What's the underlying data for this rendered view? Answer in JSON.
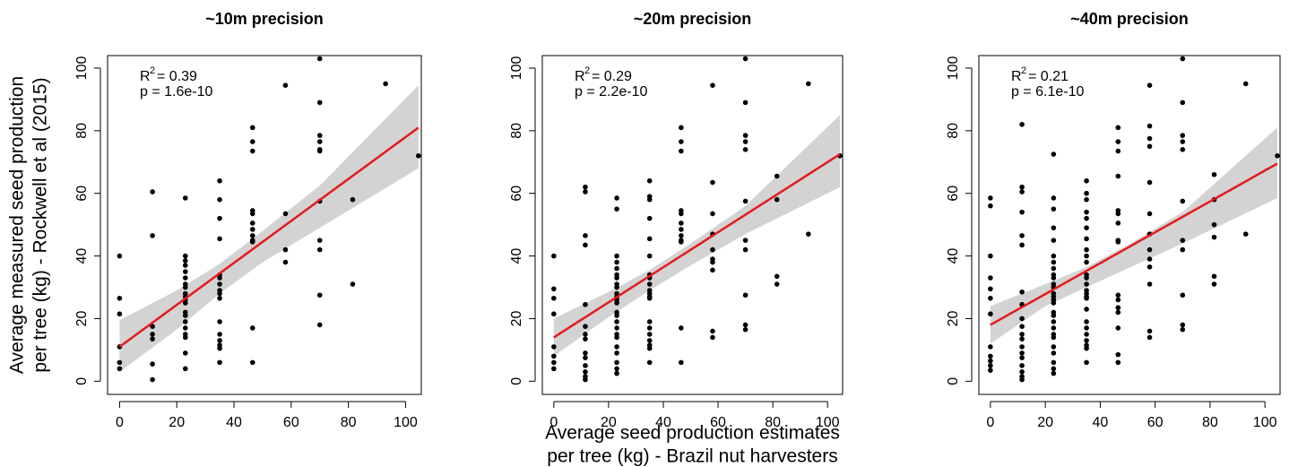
{
  "chart_data": [
    {
      "type": "scatter",
      "title": "~10m precision",
      "ylabel": [
        "Average measured seed production",
        "per tree (kg) - Rockwell et al (2015)"
      ],
      "r2_symbol": "R",
      "r2_exponent": "2",
      "r2_value": "= 0.39",
      "p_text": "p = 1.6e-10",
      "xlim": [
        -4.2,
        105.5
      ],
      "ylim": [
        -4.2,
        104
      ],
      "xticks": [
        0,
        20,
        40,
        60,
        80,
        100
      ],
      "yticks": [
        0,
        20,
        40,
        60,
        80,
        100
      ],
      "color": "#000000",
      "fit_color": "#e41a1c",
      "band_color": "#d3d3d3",
      "x": [
        0,
        0,
        0,
        0,
        0,
        0,
        11.5,
        11.5,
        11.5,
        11.5,
        11.5,
        11.5,
        11.5,
        23,
        23,
        23,
        23,
        23,
        23,
        23,
        23,
        23,
        23,
        23,
        23,
        23,
        23,
        23,
        23,
        23,
        23,
        23,
        23,
        35,
        35,
        35,
        35,
        35,
        35,
        35,
        35,
        35,
        35,
        35,
        35,
        35,
        35,
        35,
        35,
        46.5,
        46.5,
        46.5,
        46.5,
        46.5,
        46.5,
        46.5,
        46.5,
        46.5,
        46.5,
        46.5,
        46.5,
        58,
        58,
        58,
        58,
        70,
        70,
        70,
        70,
        70,
        70,
        70,
        70,
        70,
        70,
        70,
        81.5,
        81.5,
        93,
        104.5
      ],
      "y": [
        40,
        26.5,
        21.5,
        11,
        6,
        4,
        60.5,
        46.5,
        17.5,
        15,
        13.5,
        5.5,
        0.5,
        58.5,
        40,
        38.5,
        37,
        35,
        33,
        31,
        30,
        28,
        27,
        26,
        25,
        22,
        21,
        19,
        17,
        15,
        14,
        9,
        4,
        64,
        58,
        52,
        45.5,
        34,
        33,
        31,
        29,
        28,
        26.5,
        19,
        15,
        13,
        11.5,
        10.5,
        6,
        81,
        76.5,
        73.5,
        54.5,
        53.5,
        50.5,
        48.5,
        46.5,
        45,
        44.5,
        17,
        6,
        94.5,
        53.5,
        42,
        38,
        103,
        89,
        78.5,
        76.5,
        74,
        73.5,
        57.5,
        45,
        42,
        27.5,
        18,
        58,
        31,
        95,
        72
      ],
      "fit": {
        "x": [
          0,
          104.5
        ],
        "y": [
          11,
          81
        ]
      },
      "ci": {
        "x": [
          0,
          20,
          35,
          50,
          70,
          104.5
        ],
        "upper": [
          19.5,
          29,
          37.5,
          48,
          62.5,
          94.5
        ],
        "lower": [
          3,
          16.5,
          28,
          38,
          49,
          68
        ]
      }
    },
    {
      "type": "scatter",
      "title": "~20m precision",
      "xlabel": [
        "Average seed production estimates",
        "per tree (kg) - Brazil nut harvesters"
      ],
      "r2_symbol": "R",
      "r2_exponent": "2",
      "r2_value": "= 0.29",
      "p_text": "p = 2.2e-10",
      "xlim": [
        -4.2,
        105.5
      ],
      "ylim": [
        -4.2,
        104
      ],
      "xticks": [
        0,
        20,
        40,
        60,
        80,
        100
      ],
      "yticks": [
        0,
        20,
        40,
        60,
        80,
        100
      ],
      "color": "#000000",
      "fit_color": "#e41a1c",
      "band_color": "#d3d3d3",
      "x": [
        0,
        0,
        0,
        0,
        0,
        0,
        0,
        0,
        11.5,
        11.5,
        11.5,
        11.5,
        11.5,
        11.5,
        11.5,
        11.5,
        11.5,
        11.5,
        11.5,
        11.5,
        11.5,
        11.5,
        23,
        23,
        23,
        23,
        23,
        23,
        23,
        23,
        23,
        23,
        23,
        23,
        23,
        23,
        23,
        23,
        23,
        23,
        23,
        23,
        23,
        23,
        23,
        23,
        35,
        35,
        35,
        35,
        35,
        35,
        35,
        35,
        35,
        35,
        35,
        35,
        35,
        35,
        35,
        35,
        35,
        35,
        35,
        35,
        46.5,
        46.5,
        46.5,
        46.5,
        46.5,
        46.5,
        46.5,
        46.5,
        46.5,
        46.5,
        46.5,
        46.5,
        58,
        58,
        58,
        58,
        58,
        58,
        58,
        58,
        58,
        58,
        70,
        70,
        70,
        70,
        70,
        70,
        70,
        70,
        70,
        70,
        70,
        81.5,
        81.5,
        81.5,
        81.5,
        93,
        93,
        104.5
      ],
      "y": [
        40,
        29.5,
        26.5,
        21.5,
        11,
        8,
        6,
        4,
        62,
        60.5,
        46.5,
        43.5,
        24.5,
        17.5,
        15,
        13.5,
        9,
        7.5,
        5,
        3,
        1.5,
        0.5,
        58.5,
        55,
        40,
        38,
        36,
        34,
        33,
        31,
        30,
        28,
        27,
        26,
        25,
        22,
        21,
        19,
        17,
        15,
        14,
        11,
        9,
        6,
        4,
        2.5,
        64,
        59,
        58,
        52,
        45.5,
        40,
        34,
        33,
        31,
        29,
        28,
        27,
        26.5,
        19,
        17,
        15,
        13,
        11.5,
        10.5,
        6,
        81,
        76.5,
        73.5,
        54.5,
        53.5,
        50.5,
        48.5,
        46.5,
        45,
        44.5,
        17,
        6,
        94.5,
        63.5,
        53.5,
        47,
        42,
        39,
        38,
        35.5,
        16,
        14,
        103,
        89,
        78.5,
        76.5,
        74,
        57.5,
        45,
        42,
        27.5,
        18,
        16.5,
        65.5,
        58,
        33.5,
        31,
        95,
        47,
        72
      ],
      "fit": {
        "x": [
          0,
          104.5
        ],
        "y": [
          14,
          72.5
        ]
      },
      "ci": {
        "x": [
          0,
          20,
          35,
          50,
          70,
          104.5
        ],
        "upper": [
          20,
          28.5,
          35.5,
          44,
          56,
          85
        ],
        "lower": [
          8,
          20.5,
          29,
          37,
          47,
          62
        ]
      }
    },
    {
      "type": "scatter",
      "title": "~40m precision",
      "r2_symbol": "R",
      "r2_exponent": "2",
      "r2_value": "= 0.21",
      "p_text": "p = 6.1e-10",
      "xlim": [
        -4.2,
        105.5
      ],
      "ylim": [
        -4.2,
        104
      ],
      "xticks": [
        0,
        20,
        40,
        60,
        80,
        100
      ],
      "yticks": [
        0,
        20,
        40,
        60,
        80,
        100
      ],
      "color": "#000000",
      "fit_color": "#e41a1c",
      "band_color": "#d3d3d3",
      "x": [
        0,
        0,
        0,
        0,
        0,
        0,
        0,
        0,
        0,
        0,
        0,
        0,
        11.5,
        11.5,
        11.5,
        11.5,
        11.5,
        11.5,
        11.5,
        11.5,
        11.5,
        11.5,
        11.5,
        11.5,
        11.5,
        11.5,
        11.5,
        11.5,
        11.5,
        11.5,
        11.5,
        23,
        23,
        23,
        23,
        23,
        23,
        23,
        23,
        23,
        23,
        23,
        23,
        23,
        23,
        23,
        23,
        23,
        23,
        23,
        23,
        23,
        23,
        23,
        23,
        23,
        23,
        23,
        35,
        35,
        35,
        35,
        35,
        35,
        35,
        35,
        35,
        35,
        35,
        35,
        35,
        35,
        35,
        35,
        35,
        35,
        35,
        35,
        35,
        35,
        35,
        35,
        35,
        46.5,
        46.5,
        46.5,
        46.5,
        46.5,
        46.5,
        46.5,
        46.5,
        46.5,
        46.5,
        46.5,
        46.5,
        46.5,
        46.5,
        46.5,
        46.5,
        58,
        58,
        58,
        58,
        58,
        58,
        58,
        58,
        58,
        58,
        58,
        58,
        58,
        70,
        70,
        70,
        70,
        70,
        70,
        70,
        70,
        70,
        70,
        70,
        81.5,
        81.5,
        81.5,
        81.5,
        81.5,
        81.5,
        93,
        93,
        104.5
      ],
      "y": [
        58.5,
        56,
        40,
        33,
        29.5,
        26.5,
        21.5,
        11,
        8,
        6.5,
        5,
        3.5,
        82,
        62,
        60.5,
        54,
        46.5,
        43.5,
        28.5,
        24.5,
        20,
        17.5,
        15,
        13.5,
        11,
        9,
        7.5,
        5,
        3,
        1.5,
        0.5,
        72.5,
        58.5,
        55,
        49,
        45,
        40,
        38,
        36,
        34,
        33,
        31,
        30,
        28,
        27,
        26,
        25,
        22,
        21,
        19,
        17,
        15,
        14,
        11,
        9,
        6,
        4,
        2.5,
        64,
        60,
        58,
        54,
        52,
        49,
        45.5,
        42,
        40,
        38,
        34,
        33,
        31,
        29,
        28,
        27,
        26.5,
        23,
        19,
        17,
        15,
        13,
        11.5,
        10.5,
        6,
        81,
        76.5,
        73.5,
        65.5,
        54.5,
        53.5,
        50.5,
        45,
        44.5,
        27.5,
        26,
        23.5,
        22,
        17,
        8.5,
        6,
        94.5,
        81.5,
        77.5,
        75,
        63.5,
        53.5,
        47,
        42,
        39,
        36.5,
        31,
        16,
        14,
        103,
        89,
        78.5,
        76.5,
        74,
        57.5,
        45,
        42,
        27.5,
        18,
        16.5,
        66,
        58,
        50,
        46,
        33.5,
        31,
        95,
        47,
        72
      ],
      "fit": {
        "x": [
          0,
          104.5
        ],
        "y": [
          18,
          69.5
        ]
      },
      "ci": {
        "x": [
          0,
          20,
          35,
          50,
          70,
          104.5
        ],
        "upper": [
          24,
          31,
          36.5,
          43.5,
          54,
          81
        ],
        "lower": [
          12,
          24,
          30,
          36,
          44,
          58.5
        ]
      }
    }
  ]
}
